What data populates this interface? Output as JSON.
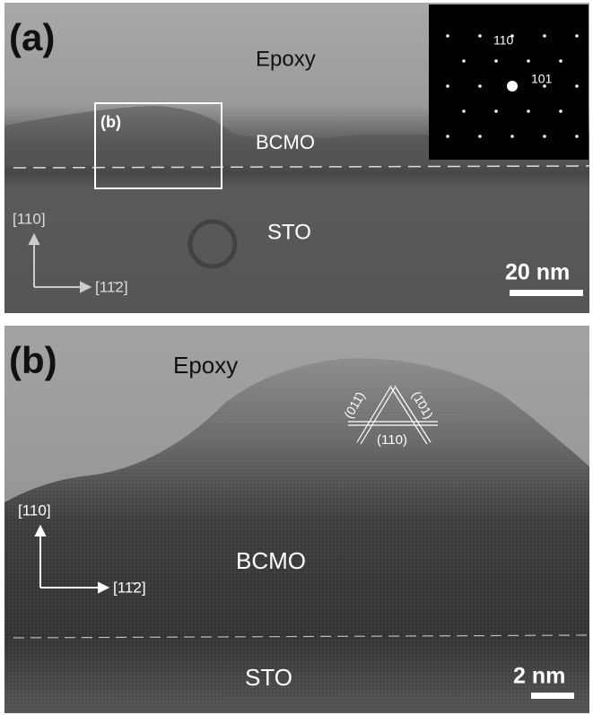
{
  "panels": [
    {
      "label": "(a)",
      "epoxy": "Epoxy",
      "film": "BCMO",
      "substrate": "STO",
      "box_label": "(b)",
      "inset": {
        "spot_1": "110",
        "spot_2": "101"
      },
      "axis_up": "[110]",
      "axis_right": "[11̄2]",
      "scale_bar": "20 nm"
    },
    {
      "label": "(b)",
      "epoxy": "Epoxy",
      "film": "BCMO",
      "substrate": "STO",
      "planes": {
        "left": "(011̄)",
        "right": "(1̄01)",
        "bottom": "(110)"
      },
      "axis_up": "[110]",
      "axis_right": "[11̄2]",
      "scale_bar": "2 nm"
    }
  ]
}
